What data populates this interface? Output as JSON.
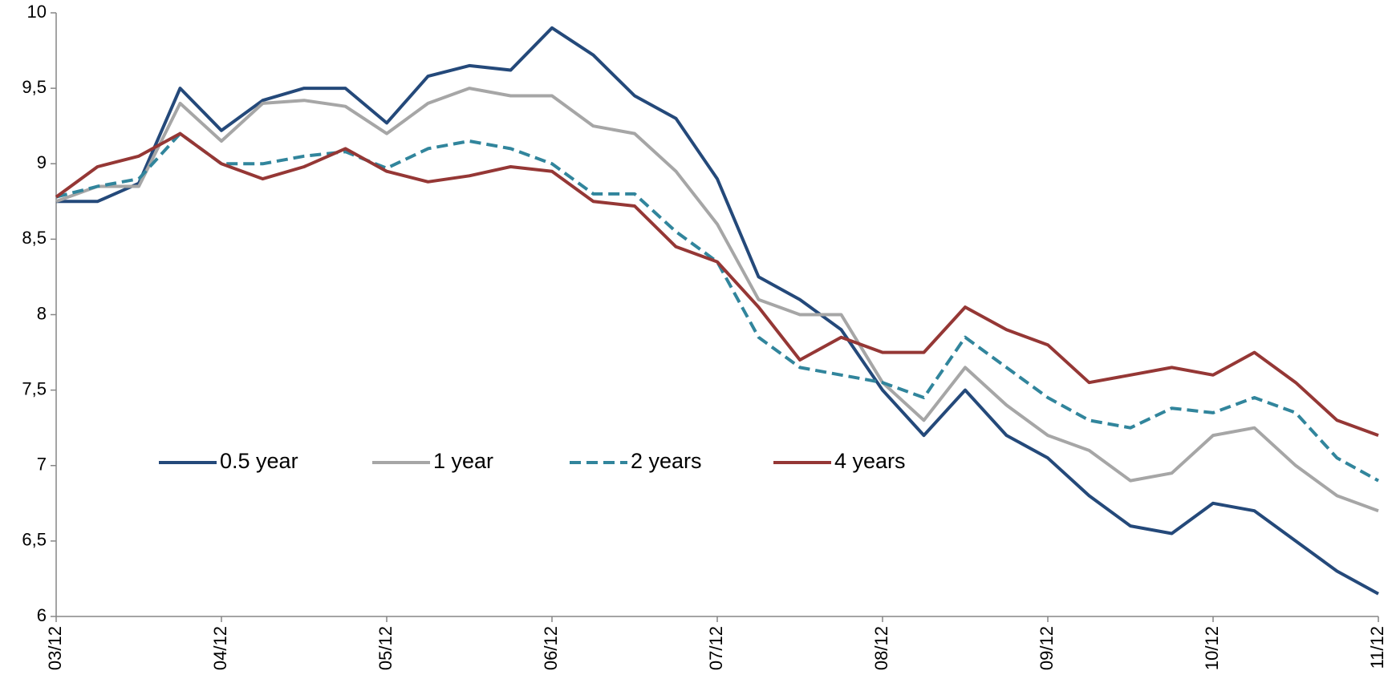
{
  "chart_data": {
    "type": "line",
    "categories": [
      "03/12",
      null,
      null,
      null,
      "04/12",
      null,
      null,
      null,
      "05/12",
      null,
      null,
      null,
      "06/12",
      null,
      null,
      null,
      "07/12",
      null,
      null,
      null,
      "08/12",
      null,
      null,
      null,
      "09/12",
      null,
      null,
      null,
      "10/12",
      null,
      null,
      null,
      "11/12"
    ],
    "series": [
      {
        "name": "0.5 year",
        "color": "#24497a",
        "style": "solid",
        "values": [
          8.75,
          8.75,
          8.87,
          9.5,
          9.22,
          9.42,
          9.5,
          9.5,
          9.27,
          9.58,
          9.65,
          9.62,
          9.9,
          9.72,
          9.45,
          9.3,
          8.9,
          8.25,
          8.1,
          7.9,
          7.5,
          7.2,
          7.5,
          7.2,
          7.05,
          6.8,
          6.6,
          6.55,
          6.75,
          6.7,
          6.5,
          6.3,
          6.15
        ]
      },
      {
        "name": "1 year",
        "color": "#a6a6a6",
        "style": "solid",
        "values": [
          8.75,
          8.85,
          8.85,
          9.4,
          9.15,
          9.4,
          9.42,
          9.38,
          9.2,
          9.4,
          9.5,
          9.45,
          9.45,
          9.25,
          9.2,
          8.95,
          8.6,
          8.1,
          8.0,
          8.0,
          7.55,
          7.3,
          7.65,
          7.4,
          7.2,
          7.1,
          6.9,
          6.95,
          7.2,
          7.25,
          7.0,
          6.8,
          6.7
        ]
      },
      {
        "name": "2 years",
        "color": "#31859c",
        "style": "dashed",
        "values": [
          8.78,
          8.85,
          8.9,
          9.2,
          9.0,
          9.0,
          9.05,
          9.08,
          8.97,
          9.1,
          9.15,
          9.1,
          9.0,
          8.8,
          8.8,
          8.55,
          8.35,
          7.85,
          7.65,
          7.6,
          7.55,
          7.45,
          7.85,
          7.65,
          7.45,
          7.3,
          7.25,
          7.38,
          7.35,
          7.45,
          7.35,
          7.05,
          6.9
        ]
      },
      {
        "name": "4 years",
        "color": "#953735",
        "style": "solid",
        "values": [
          8.78,
          8.98,
          9.05,
          9.2,
          9.0,
          8.9,
          8.98,
          9.1,
          8.95,
          8.88,
          8.92,
          8.98,
          8.95,
          8.75,
          8.72,
          8.45,
          8.35,
          8.05,
          7.7,
          7.85,
          7.75,
          7.75,
          8.05,
          7.9,
          7.8,
          7.55,
          7.6,
          7.65,
          7.6,
          7.75,
          7.55,
          7.3,
          7.2
        ]
      }
    ],
    "ylim": [
      6,
      10
    ],
    "yticks": [
      6,
      {
        "value": 6.5,
        "label": "6,5"
      },
      7,
      {
        "value": 7.5,
        "label": "7,5"
      },
      8,
      {
        "value": 8.5,
        "label": "8,5"
      },
      9,
      {
        "value": 9.5,
        "label": "9,5"
      },
      10
    ],
    "grid": false,
    "legend": "left"
  }
}
